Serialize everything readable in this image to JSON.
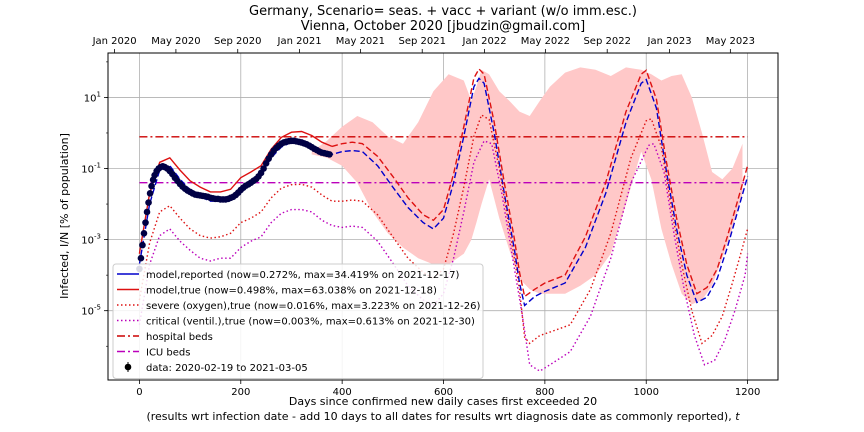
{
  "chart_data": {
    "type": "line",
    "title_line1": "Germany, Scenario= seas. + vacc + variant (w/o imm.esc.)",
    "title_line2": "Vienna, October 2020 [jbudzin@gmail.com]",
    "xlabel_line1": "Days since confirmed new daily cases first exceeded 20",
    "xlabel_line2": "(results wrt infection date - add 10 days to all dates for results wrt diagnosis date as commonly reported), ",
    "xlabel_italic": "t",
    "ylabel": "Infected, I/N [% of population]",
    "xlim": [
      -62,
      1260
    ],
    "ylim_log10": [
      -6.95,
      2.25
    ],
    "yscale": "log",
    "grid": true,
    "legend_position": "lower-left",
    "x_ticks": [
      0,
      200,
      400,
      600,
      800,
      1000,
      1200
    ],
    "x_tick_labels": [
      "0",
      "200",
      "400",
      "600",
      "800",
      "1000",
      "1200"
    ],
    "y_ticks": [
      -5,
      -3,
      -1,
      1
    ],
    "y_tick_labels": [
      {
        "base": "10",
        "exp": "-5"
      },
      {
        "base": "10",
        "exp": "-3"
      },
      {
        "base": "10",
        "exp": "-1"
      },
      {
        "base": "10",
        "exp": "1"
      }
    ],
    "top_axis": {
      "ticks": [
        -49,
        72,
        194,
        316,
        436,
        558,
        681,
        801,
        923,
        1046,
        1166
      ],
      "labels": [
        "Jan 2020",
        "May 2020",
        "Sep 2020",
        "Jan 2021",
        "May 2021",
        "Sep 2021",
        "Jan 2022",
        "May 2022",
        "Sep 2022",
        "Jan 2023",
        "May 2023"
      ]
    },
    "colors": {
      "reported": "#0000cc",
      "true": "#dd1111",
      "severe": "#dd1111",
      "critical": "#bb00bb",
      "hospital": "#cc0000",
      "icu": "#bb00bb",
      "band": "#ffc8c8",
      "data": "#000044"
    },
    "hospital_beds_pct": 0.78,
    "icu_beds_pct": 0.04,
    "series": [
      {
        "name": "model,reported (now=0.272%, max=34.419% on 2021-12-17)",
        "style": "dashed",
        "x": [
          0,
          20,
          40,
          60,
          80,
          100,
          120,
          140,
          160,
          180,
          200,
          220,
          240,
          260,
          280,
          300,
          320,
          340,
          360,
          380,
          400,
          420,
          440,
          470,
          500,
          530,
          560,
          580,
          600,
          620,
          640,
          660,
          670,
          680,
          700,
          720,
          740,
          750,
          760,
          780,
          800,
          840,
          880,
          920,
          960,
          990,
          1000,
          1020,
          1040,
          1060,
          1080,
          1100,
          1120,
          1140,
          1160,
          1180,
          1200
        ],
        "y": [
          0.0002,
          0.01,
          0.09,
          0.12,
          0.05,
          0.025,
          0.016,
          0.012,
          0.012,
          0.015,
          0.03,
          0.045,
          0.07,
          0.2,
          0.4,
          0.55,
          0.58,
          0.45,
          0.3,
          0.25,
          0.3,
          0.32,
          0.3,
          0.12,
          0.03,
          0.008,
          0.003,
          0.002,
          0.004,
          0.04,
          0.8,
          20,
          34.4,
          25,
          1,
          0.02,
          0.0005,
          6e-05,
          1.4e-05,
          2.5e-05,
          3.5e-05,
          6e-05,
          0.0006,
          0.02,
          2,
          25,
          32,
          5,
          0.08,
          0.002,
          0.0001,
          1.7e-05,
          2.4e-05,
          8e-05,
          0.0006,
          0.006,
          0.06
        ]
      },
      {
        "name": "model,true (now=0.498%, max=63.038% on 2021-12-18)",
        "style": "solid",
        "x": [
          0,
          20,
          40,
          60,
          80,
          100,
          120,
          140,
          160,
          180,
          200,
          220,
          240,
          260,
          280,
          300,
          320,
          340,
          360,
          380
        ],
        "y": [
          0.0004,
          0.02,
          0.15,
          0.2,
          0.09,
          0.045,
          0.03,
          0.022,
          0.022,
          0.026,
          0.055,
          0.08,
          0.12,
          0.35,
          0.75,
          1.05,
          1.1,
          0.85,
          0.55,
          0.42
        ]
      },
      {
        "name": "model,true continuation",
        "style": "dashed",
        "legend": false,
        "x": [
          380,
          400,
          420,
          440,
          470,
          500,
          530,
          560,
          580,
          600,
          620,
          640,
          660,
          670,
          680,
          700,
          720,
          740,
          750,
          760,
          780,
          800,
          840,
          880,
          920,
          960,
          990,
          1000,
          1020,
          1040,
          1060,
          1080,
          1100,
          1120,
          1140,
          1160,
          1180,
          1200
        ],
        "y": [
          0.42,
          0.5,
          0.55,
          0.5,
          0.22,
          0.06,
          0.015,
          0.005,
          0.0035,
          0.007,
          0.07,
          1.5,
          35,
          63,
          45,
          2,
          0.04,
          0.001,
          0.00012,
          2.5e-05,
          4e-05,
          6e-05,
          0.0001,
          0.0012,
          0.04,
          4,
          45,
          58,
          9,
          0.15,
          0.004,
          0.0002,
          3e-05,
          4.5e-05,
          0.00015,
          0.0012,
          0.012,
          0.12
        ]
      },
      {
        "name": "severe (oxygen),true (now=0.016%, max=3.223% on 2021-12-26)",
        "style": "dotted",
        "x": [
          0,
          20,
          40,
          60,
          80,
          100,
          120,
          140,
          160,
          180,
          200,
          220,
          240,
          260,
          280,
          300,
          320,
          340,
          360,
          380,
          400,
          420,
          440,
          470,
          500,
          530,
          560,
          580,
          600,
          620,
          640,
          660,
          675,
          690,
          710,
          730,
          750,
          760,
          770,
          790,
          810,
          850,
          890,
          930,
          970,
          1000,
          1010,
          1030,
          1050,
          1070,
          1090,
          1110,
          1130,
          1150,
          1170,
          1190,
          1200
        ],
        "y": [
          2e-05,
          0.0008,
          0.006,
          0.009,
          0.004,
          0.002,
          0.0013,
          0.0011,
          0.0012,
          0.0015,
          0.003,
          0.004,
          0.006,
          0.015,
          0.028,
          0.035,
          0.036,
          0.03,
          0.018,
          0.012,
          0.012,
          0.013,
          0.012,
          0.005,
          0.0012,
          0.0003,
          0.00012,
          8e-05,
          0.00015,
          0.0015,
          0.03,
          0.8,
          3.2,
          2.4,
          0.1,
          0.002,
          4e-05,
          1.8e-06,
          1.2e-06,
          2e-06,
          2.5e-06,
          4e-06,
          4e-05,
          0.0015,
          0.2,
          2.2,
          2.5,
          0.4,
          0.007,
          0.0002,
          1e-05,
          1.2e-06,
          2e-06,
          7e-06,
          6e-05,
          0.0006,
          0.002
        ]
      },
      {
        "name": "critical (ventil.),true (now=0.003%, max=0.613% on 2021-12-30)",
        "style": "dotted",
        "x": [
          0,
          20,
          40,
          60,
          80,
          100,
          120,
          140,
          160,
          180,
          200,
          220,
          240,
          260,
          280,
          300,
          320,
          340,
          360,
          380,
          400,
          420,
          440,
          470,
          500,
          530,
          560,
          580,
          600,
          620,
          640,
          660,
          680,
          695,
          715,
          735,
          755,
          770,
          790,
          810,
          850,
          890,
          930,
          970,
          1005,
          1015,
          1035,
          1055,
          1075,
          1095,
          1115,
          1135,
          1155,
          1175,
          1195,
          1200
        ],
        "y": [
          4e-06,
          0.0002,
          0.0013,
          0.002,
          0.0009,
          0.0005,
          0.0003,
          0.00025,
          0.0003,
          0.0003,
          0.0006,
          0.0009,
          0.0012,
          0.003,
          0.0055,
          0.007,
          0.007,
          0.006,
          0.0035,
          0.0025,
          0.0022,
          0.0024,
          0.0022,
          0.0009,
          0.00022,
          5e-05,
          2e-05,
          1.4e-05,
          3e-05,
          0.0003,
          0.006,
          0.15,
          0.6,
          0.5,
          0.02,
          0.0004,
          8e-06,
          3e-07,
          2e-07,
          3e-07,
          7e-07,
          7e-06,
          0.0003,
          0.04,
          0.45,
          0.5,
          0.08,
          0.0014,
          4e-05,
          2e-06,
          3e-07,
          4e-07,
          1.5e-06,
          1e-05,
          0.0001,
          0.0004
        ]
      },
      {
        "name": "data: 2020-02-19 to 2021-03-05",
        "style": "markers",
        "x": [
          0,
          3,
          6,
          9,
          12,
          15,
          18,
          21,
          24,
          27,
          30,
          34,
          38,
          42,
          46,
          50,
          55,
          60,
          65,
          70,
          75,
          80,
          85,
          90,
          95,
          100,
          105,
          110,
          115,
          120,
          125,
          130,
          135,
          140,
          145,
          150,
          155,
          160,
          165,
          170,
          175,
          180,
          185,
          190,
          195,
          200,
          205,
          210,
          215,
          220,
          225,
          230,
          235,
          240,
          245,
          250,
          255,
          260,
          265,
          270,
          275,
          280,
          285,
          290,
          295,
          300,
          305,
          310,
          315,
          320,
          325,
          330,
          335,
          340,
          345,
          350,
          355,
          360,
          365,
          370,
          375
        ],
        "y": [
          0.00015,
          0.0003,
          0.0007,
          0.0015,
          0.003,
          0.006,
          0.011,
          0.02,
          0.032,
          0.048,
          0.065,
          0.085,
          0.1,
          0.11,
          0.115,
          0.11,
          0.1,
          0.085,
          0.07,
          0.055,
          0.045,
          0.037,
          0.031,
          0.027,
          0.024,
          0.022,
          0.02,
          0.0185,
          0.018,
          0.0175,
          0.017,
          0.0165,
          0.016,
          0.015,
          0.0145,
          0.014,
          0.014,
          0.0135,
          0.0135,
          0.0135,
          0.014,
          0.015,
          0.016,
          0.018,
          0.021,
          0.025,
          0.029,
          0.033,
          0.036,
          0.04,
          0.045,
          0.05,
          0.06,
          0.075,
          0.1,
          0.14,
          0.19,
          0.25,
          0.32,
          0.38,
          0.44,
          0.5,
          0.54,
          0.57,
          0.59,
          0.6,
          0.6,
          0.58,
          0.56,
          0.54,
          0.51,
          0.48,
          0.44,
          0.4,
          0.36,
          0.33,
          0.3,
          0.28,
          0.27,
          0.26,
          0.25
        ]
      }
    ],
    "band": {
      "x": [
        340,
        370,
        400,
        430,
        460,
        490,
        520,
        550,
        580,
        610,
        640,
        655,
        665,
        675,
        690,
        710,
        730,
        750,
        770,
        790,
        810,
        840,
        870,
        900,
        930,
        960,
        990,
        1010,
        1030,
        1050,
        1070,
        1090,
        1110,
        1130,
        1150,
        1170,
        1190
      ],
      "lower": [
        0.25,
        0.2,
        0.12,
        0.04,
        0.006,
        0.0015,
        0.0006,
        0.0003,
        0.0002,
        0.0002,
        0.0004,
        0.001,
        0.003,
        0.01,
        0.05,
        0.004,
        0.0005,
        8e-05,
        4e-05,
        3e-05,
        3e-05,
        3e-05,
        5e-05,
        0.0001,
        0.0004,
        0.01,
        0.3,
        0.05,
        0.002,
        0.0002,
        3e-05,
        1.5e-05,
        2e-05,
        5e-05,
        0.0003,
        0.002,
        0.02
      ],
      "upper": [
        0.3,
        0.6,
        1.5,
        3,
        2,
        0.8,
        0.5,
        2,
        15,
        45,
        30,
        8,
        20,
        60,
        45,
        15,
        8,
        4,
        3,
        8,
        20,
        50,
        70,
        60,
        40,
        70,
        60,
        45,
        30,
        40,
        45,
        10,
        1,
        0.08,
        0.05,
        0.1,
        0.5
      ]
    },
    "legend": [
      {
        "label": "model,reported (now=0.272%, max=34.419% on 2021-12-17)",
        "kind": "solid",
        "color": "#0000cc"
      },
      {
        "label": "model,true (now=0.498%, max=63.038% on 2021-12-18)",
        "kind": "solid",
        "color": "#dd1111"
      },
      {
        "label": "severe (oxygen),true (now=0.016%, max=3.223% on 2021-12-26)",
        "kind": "dotted",
        "color": "#dd1111"
      },
      {
        "label": "critical (ventil.),true (now=0.003%, max=0.613% on 2021-12-30)",
        "kind": "dotted",
        "color": "#bb00bb"
      },
      {
        "label": "hospital beds",
        "kind": "dashdot",
        "color": "#cc0000"
      },
      {
        "label": "ICU beds",
        "kind": "dashdot",
        "color": "#bb00bb"
      },
      {
        "label": "data: 2020-02-19 to 2021-03-05",
        "kind": "marker",
        "color": "#000000"
      }
    ]
  }
}
